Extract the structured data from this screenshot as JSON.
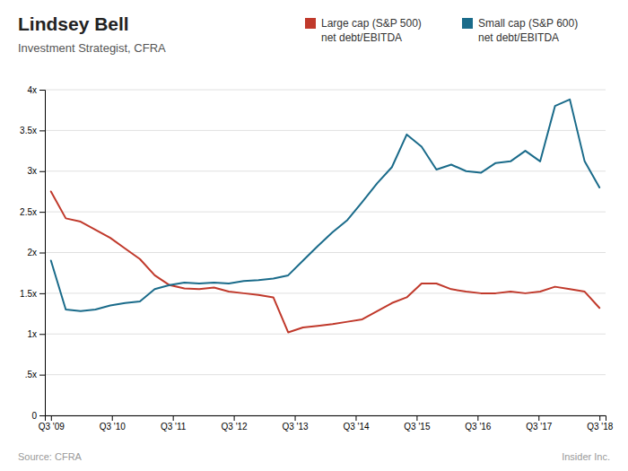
{
  "chart_data": {
    "type": "line",
    "title": "Lindsey Bell",
    "subtitle": "Investment Strategist, CFRA",
    "annotations": [
      "Source: CFRA",
      "Insider Inc."
    ],
    "x": [
      0,
      0.243243,
      0.486486,
      0.72973,
      0.972973,
      1.216216,
      1.459459,
      1.702703,
      1.945946,
      2.189189,
      2.432432,
      2.675676,
      2.918919,
      3.162162,
      3.405405,
      3.648649,
      3.891892,
      4.135135,
      4.378378,
      4.621622,
      4.864865,
      5.108108,
      5.351351,
      5.594595,
      5.837838,
      6.081081,
      6.324324,
      6.567568,
      6.810811,
      7.054054,
      7.297297,
      7.540541,
      7.783784,
      8.027027,
      8.27027,
      8.513514,
      8.756757,
      9
    ],
    "series": [
      {
        "name": "Large cap (S&P 500)\nnet debt/EBITDA",
        "color": "#c0392b",
        "values": [
          2.75,
          2.42,
          2.38,
          2.28,
          2.18,
          2.05,
          1.92,
          1.72,
          1.6,
          1.56,
          1.55,
          1.57,
          1.52,
          1.5,
          1.48,
          1.45,
          1.02,
          1.08,
          1.1,
          1.12,
          1.15,
          1.18,
          1.28,
          1.38,
          1.45,
          1.62,
          1.62,
          1.55,
          1.52,
          1.5,
          1.5,
          1.52,
          1.5,
          1.52,
          1.58,
          1.55,
          1.52,
          1.32
        ]
      },
      {
        "name": "Small cap (S&P 600)\nnet debt/EBITDA",
        "color": "#1a6b8a",
        "values": [
          1.9,
          1.3,
          1.28,
          1.3,
          1.35,
          1.38,
          1.4,
          1.55,
          1.6,
          1.63,
          1.62,
          1.63,
          1.62,
          1.65,
          1.66,
          1.68,
          1.72,
          1.9,
          2.08,
          2.25,
          2.4,
          2.62,
          2.85,
          3.05,
          3.45,
          3.3,
          3.02,
          3.08,
          3.0,
          2.98,
          3.1,
          3.12,
          3.25,
          3.12,
          3.8,
          3.88,
          3.12,
          2.8
        ]
      }
    ],
    "xlim": [
      -0.1,
      9.1
    ],
    "xticks": [
      {
        "value": 0,
        "label": "Q3 '09"
      },
      {
        "value": 1,
        "label": "Q3 '10"
      },
      {
        "value": 2,
        "label": "Q3 '11"
      },
      {
        "value": 3,
        "label": "Q3 '12"
      },
      {
        "value": 4,
        "label": "Q3 '13"
      },
      {
        "value": 5,
        "label": "Q3 '14"
      },
      {
        "value": 6,
        "label": "Q3 '15"
      },
      {
        "value": 7,
        "label": "Q3 '16"
      },
      {
        "value": 8,
        "label": "Q3 '17"
      },
      {
        "value": 9,
        "label": "Q3 '18"
      }
    ],
    "ylim": [
      0,
      4.0
    ],
    "yticks": [
      0,
      {
        "value": 0.5,
        "label": ".5x"
      },
      {
        "value": 1.0,
        "label": "1x"
      },
      {
        "value": 1.5,
        "label": "1.5x"
      },
      {
        "value": 2.0,
        "label": "2x"
      },
      {
        "value": 2.5,
        "label": "2.5x"
      },
      {
        "value": 3.0,
        "label": "3x"
      },
      {
        "value": 3.5,
        "label": "3.5x"
      },
      {
        "value": 4.0,
        "label": "4x"
      }
    ],
    "grid": true,
    "legend": "top"
  }
}
